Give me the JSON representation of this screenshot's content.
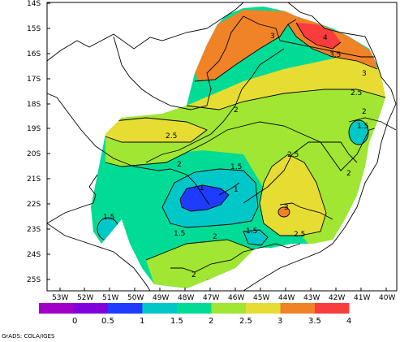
{
  "lat_labels": [
    "14S",
    "15S",
    "16S",
    "17S",
    "18S",
    "19S",
    "20S",
    "21S",
    "22S",
    "23S",
    "24S",
    "25S"
  ],
  "lon_labels": [
    "53W",
    "52W",
    "51W",
    "50W",
    "49W",
    "48W",
    "47W",
    "46W",
    "45W",
    "44W",
    "43W",
    "42W",
    "41W",
    "40W"
  ],
  "contour_labels": [
    "3",
    "4",
    "3.5",
    "3",
    "2.5",
    "2",
    "2",
    "1.5",
    "2.5",
    "2",
    "2.5",
    "1.5",
    "2",
    "1",
    "1",
    "3",
    "1.5",
    "1.5",
    "2",
    "1.5",
    "2.5",
    "2"
  ],
  "colorbar": {
    "ticks": [
      "0",
      "0.5",
      "1",
      "1.5",
      "2",
      "2.5",
      "3",
      "3.5",
      "4"
    ],
    "colors": [
      "#a000c8",
      "#8200dc",
      "#1e3cff",
      "#00c8c8",
      "#00dc96",
      "#a0e632",
      "#e6dc32",
      "#f08228",
      "#fa3c3c"
    ]
  },
  "credit": "GrADS: COLA/IGES"
}
